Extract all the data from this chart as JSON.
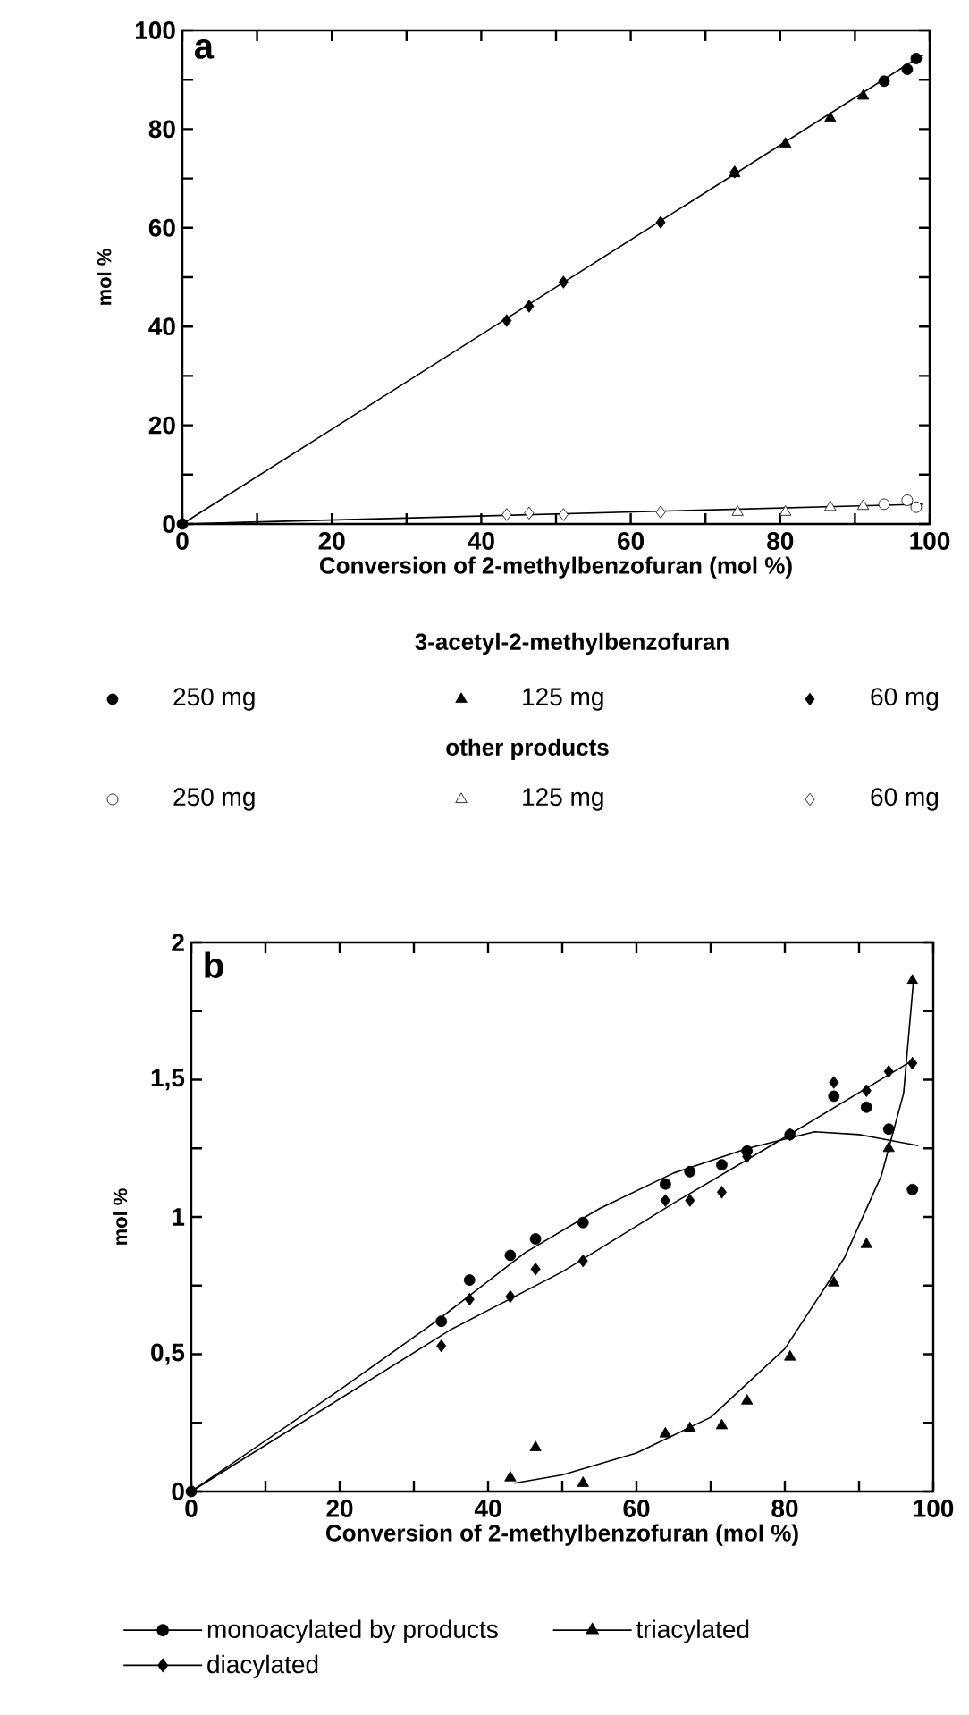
{
  "chart_data": [
    {
      "type": "scatter",
      "title": "a",
      "xlabel": "Conversion of 2-methylbenzofuran (mol %)",
      "ylabel": "mol %",
      "legend_title": "3-acetyl-2-methylbenzofuran",
      "annotations": [
        "other products"
      ],
      "legend": "bottom",
      "grid": false,
      "xlim": [
        0,
        100
      ],
      "ylim": [
        0,
        100
      ],
      "xticks": [
        0,
        {
          "value": 10,
          "label": null
        },
        20,
        {
          "value": 30,
          "label": null
        },
        40,
        {
          "value": 50,
          "label": null
        },
        60,
        {
          "value": 70,
          "label": null
        },
        80,
        {
          "value": 90,
          "label": null
        },
        100
      ],
      "yticks": [
        0,
        {
          "value": 10,
          "label": null
        },
        20,
        {
          "value": 30,
          "label": null
        },
        40,
        {
          "value": 50,
          "label": null
        },
        60,
        {
          "value": 70,
          "label": null
        },
        80,
        {
          "value": 90,
          "label": null
        },
        100
      ],
      "series": [
        {
          "type": "line",
          "marker": "none",
          "color": "#000000",
          "x": [
            0,
            99
          ],
          "values": [
            0,
            95
          ]
        },
        {
          "type": "line",
          "marker": "none",
          "color": "#000000",
          "x": [
            0,
            99
          ],
          "values": [
            0,
            4
          ]
        },
        {
          "name": "250 mg",
          "marker": "circle",
          "color": "#000000",
          "x": [
            0,
            93.9,
            97.0,
            98.2
          ],
          "values": [
            0,
            89.7,
            92.1,
            94.3
          ]
        },
        {
          "name": "125 mg",
          "marker": "triangle",
          "color": "#000000",
          "x": [
            73.9,
            80.7,
            86.7,
            91.1
          ],
          "values": [
            71,
            77,
            82.2,
            86.7
          ]
        },
        {
          "name": "60 mg",
          "marker": "diamond",
          "color": "#000000",
          "x": [
            43.4,
            46.4,
            51,
            64,
            73.9
          ],
          "values": [
            41.2,
            44.1,
            49,
            61.1,
            71.3
          ]
        },
        {
          "name": "250 mg",
          "marker": "circle",
          "color": "#ffffff",
          "x": [
            93.9,
            97.0,
            98.2
          ],
          "values": [
            4,
            4.8,
            3.4
          ]
        },
        {
          "name": "125 mg",
          "marker": "triangle",
          "color": "#ffffff",
          "x": [
            74.3,
            80.7,
            86.7,
            91.1
          ],
          "values": [
            2.4,
            2.4,
            3.4,
            3.6
          ]
        },
        {
          "name": "60 mg",
          "marker": "diamond",
          "color": "#ffffff",
          "x": [
            43.4,
            46.4,
            51,
            64
          ],
          "values": [
            1.9,
            2.2,
            1.9,
            2.4
          ]
        }
      ]
    },
    {
      "type": "scatter",
      "title": "b",
      "xlabel": "Conversion of 2-methylbenzofuran (mol %)",
      "ylabel": "mol %",
      "legend": "bottom",
      "grid": false,
      "xlim": [
        0,
        100
      ],
      "ylim": [
        0,
        2
      ],
      "xticks": [
        0,
        {
          "value": 10,
          "label": null
        },
        20,
        {
          "value": 30,
          "label": null
        },
        40,
        {
          "value": 50,
          "label": null
        },
        60,
        {
          "value": 70,
          "label": null
        },
        80,
        {
          "value": 90,
          "label": null
        },
        100
      ],
      "yticks": [
        0,
        {
          "value": 0.25,
          "label": null
        },
        {
          "value": 0.5,
          "label": "0,5"
        },
        {
          "value": 0.75,
          "label": null
        },
        1,
        {
          "value": 1.25,
          "label": null
        },
        {
          "value": 1.5,
          "label": "1,5"
        },
        {
          "value": 1.75,
          "label": null
        },
        2
      ],
      "series": [
        {
          "type": "line",
          "marker": "none",
          "color": "#000000",
          "x": [
            0,
            20,
            33,
            45,
            55,
            65,
            75,
            84,
            90,
            98
          ],
          "values": [
            0,
            0.37,
            0.62,
            0.87,
            1.03,
            1.16,
            1.25,
            1.31,
            1.3,
            1.26
          ]
        },
        {
          "type": "line",
          "marker": "none",
          "color": "#000000",
          "x": [
            0,
            35,
            50,
            65,
            80,
            97.2
          ],
          "values": [
            0,
            0.59,
            0.8,
            1.05,
            1.29,
            1.57
          ]
        },
        {
          "type": "line",
          "marker": "none",
          "color": "#000000",
          "x": [
            43.5,
            50,
            60,
            70,
            80,
            88,
            93,
            96,
            97.3
          ],
          "values": [
            0.03,
            0.06,
            0.14,
            0.27,
            0.52,
            0.85,
            1.15,
            1.45,
            1.85
          ]
        },
        {
          "name": "monoacylated by products",
          "marker": "circle",
          "color": "#000000",
          "x": [
            0,
            33.7,
            37.5,
            43,
            46.4,
            52.8,
            63.9,
            67.2,
            71.5,
            74.9,
            80.7,
            86.6,
            91,
            94,
            97.2
          ],
          "values": [
            0,
            0.62,
            0.77,
            0.86,
            0.92,
            0.98,
            1.12,
            1.165,
            1.19,
            1.24,
            1.3,
            1.44,
            1.4,
            1.32,
            1.1
          ]
        },
        {
          "name": "triacylated",
          "marker": "triangle",
          "color": "#000000",
          "x": [
            43,
            46.4,
            52.8,
            63.9,
            67.2,
            71.5,
            74.9,
            80.7,
            86.6,
            91,
            94,
            97.2
          ],
          "values": [
            0.05,
            0.16,
            0.03,
            0.21,
            0.23,
            0.24,
            0.33,
            0.49,
            0.76,
            0.9,
            1.25,
            1.86
          ]
        },
        {
          "name": "diacylated",
          "marker": "diamond",
          "color": "#000000",
          "x": [
            33.7,
            37.5,
            43,
            46.4,
            52.8,
            63.9,
            67.2,
            71.5,
            74.9,
            80.7,
            86.6,
            91,
            94,
            97.2
          ],
          "values": [
            0.53,
            0.7,
            0.71,
            0.81,
            0.84,
            1.06,
            1.06,
            1.09,
            1.22,
            1.3,
            1.49,
            1.46,
            1.53,
            1.56
          ]
        }
      ]
    }
  ]
}
